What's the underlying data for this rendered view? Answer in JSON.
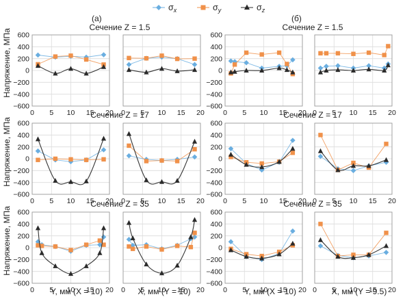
{
  "legend": {
    "sx": {
      "symbol": "σ",
      "sub": "x",
      "color": "#6aaee0",
      "marker": "diamond"
    },
    "sy": {
      "symbol": "σ",
      "sub": "y",
      "color": "#f0914a",
      "marker": "square"
    },
    "sz": {
      "symbol": "σ",
      "sub": "z",
      "color": "#2b2b2b",
      "marker": "triangle"
    }
  },
  "panel_labels": {
    "a": "(а)",
    "b": "(б)"
  },
  "ylabel": "Напряжение, МПа",
  "row_titles": [
    "Сечение Z = 1.5",
    "Сечение Z = 17",
    "Сечение Z = 35"
  ],
  "x_axis_labels": [
    "Y, мм (X = 10)",
    "X, мм (Y = 10)",
    "Y, мм (X = 10)",
    "X, мм (Y = 9.5)"
  ],
  "chart_data": [
    {
      "type": "line",
      "row": 0,
      "col": 0,
      "xlim": [
        0,
        20
      ],
      "ylim": [
        -600,
        600
      ],
      "xticks": [
        0,
        5,
        10,
        15,
        20
      ],
      "yticks": [
        -600,
        -400,
        -200,
        0,
        200,
        400,
        600
      ],
      "series": [
        {
          "key": "sx",
          "x": [
            1.5,
            6,
            10,
            14,
            18.5
          ],
          "y": [
            260,
            225,
            240,
            225,
            265
          ]
        },
        {
          "key": "sy",
          "x": [
            1.5,
            6,
            10,
            14,
            18.5
          ],
          "y": [
            105,
            235,
            250,
            185,
            100
          ]
        },
        {
          "key": "sz",
          "x": [
            1.5,
            6,
            10,
            14,
            18.5
          ],
          "y": [
            80,
            -50,
            30,
            -50,
            60
          ]
        }
      ]
    },
    {
      "type": "line",
      "row": 0,
      "col": 1,
      "xlim": [
        0,
        20
      ],
      "ylim": [
        -600,
        600
      ],
      "xticks": [
        0,
        5,
        10,
        15,
        20
      ],
      "yticks": [
        -600,
        -400,
        -200,
        0,
        200,
        400,
        600
      ],
      "series": [
        {
          "key": "sx",
          "x": [
            1.5,
            6,
            10,
            14,
            18.5
          ],
          "y": [
            100,
            205,
            225,
            200,
            100
          ]
        },
        {
          "key": "sy",
          "x": [
            1.5,
            6,
            10,
            14,
            18.5
          ],
          "y": [
            210,
            205,
            250,
            195,
            200
          ]
        },
        {
          "key": "sz",
          "x": [
            1.5,
            6,
            10,
            14,
            18.5
          ],
          "y": [
            10,
            -30,
            30,
            -10,
            10
          ]
        }
      ]
    },
    {
      "type": "line",
      "row": 0,
      "col": 2,
      "xlim": [
        0,
        20
      ],
      "ylim": [
        -600,
        600
      ],
      "xticks": [
        0,
        5,
        10,
        15,
        20
      ],
      "yticks": [
        -600,
        -400,
        -200,
        0,
        200,
        400,
        600
      ],
      "series": [
        {
          "key": "sx",
          "x": [
            1.5,
            2.5,
            5.5,
            9.5,
            14,
            16,
            17.5
          ],
          "y": [
            160,
            150,
            130,
            40,
            70,
            80,
            180
          ]
        },
        {
          "key": "sy",
          "x": [
            1.5,
            2.5,
            5.5,
            9.5,
            14,
            16,
            17.5
          ],
          "y": [
            -50,
            100,
            300,
            270,
            300,
            110,
            -60
          ]
        },
        {
          "key": "sz",
          "x": [
            1.5,
            2.5,
            5.5,
            9.5,
            14,
            16,
            17.5
          ],
          "y": [
            -30,
            -20,
            0,
            0,
            40,
            10,
            -30
          ]
        }
      ]
    },
    {
      "type": "line",
      "row": 0,
      "col": 3,
      "xlim": [
        0,
        20
      ],
      "ylim": [
        -600,
        600
      ],
      "xticks": [
        0,
        5,
        10,
        15,
        20
      ],
      "yticks": [
        -600,
        -400,
        -200,
        0,
        200,
        400,
        600
      ],
      "series": [
        {
          "key": "sx",
          "x": [
            1.5,
            3,
            6,
            10,
            14,
            18,
            19
          ],
          "y": [
            40,
            70,
            80,
            40,
            80,
            40,
            110
          ]
        },
        {
          "key": "sy",
          "x": [
            1.5,
            3,
            6,
            10,
            14,
            18,
            19
          ],
          "y": [
            290,
            290,
            290,
            280,
            300,
            260,
            410
          ]
        },
        {
          "key": "sz",
          "x": [
            1.5,
            3,
            6,
            10,
            14,
            18,
            19
          ],
          "y": [
            -30,
            0,
            10,
            0,
            20,
            0,
            90
          ]
        }
      ]
    },
    {
      "type": "line",
      "row": 1,
      "col": 0,
      "xlim": [
        0,
        20
      ],
      "ylim": [
        -600,
        600
      ],
      "xticks": [
        0,
        5,
        10,
        15,
        20
      ],
      "yticks": [
        -600,
        -400,
        -200,
        0,
        200,
        400,
        600
      ],
      "series": [
        {
          "key": "sx",
          "x": [
            1.5,
            6,
            10,
            14,
            18.5
          ],
          "y": [
            130,
            -20,
            -50,
            -20,
            150
          ]
        },
        {
          "key": "sy",
          "x": [
            1.5,
            6,
            10,
            14,
            18.5
          ],
          "y": [
            -20,
            0,
            -10,
            -20,
            -10
          ]
        },
        {
          "key": "sz",
          "x": [
            1.5,
            6,
            10,
            14,
            18.5
          ],
          "y": [
            330,
            -370,
            -390,
            -380,
            340
          ]
        }
      ]
    },
    {
      "type": "line",
      "row": 1,
      "col": 1,
      "xlim": [
        0,
        20
      ],
      "ylim": [
        -600,
        600
      ],
      "xticks": [
        0,
        5,
        10,
        15,
        20
      ],
      "yticks": [
        -600,
        -400,
        -200,
        0,
        200,
        400,
        600
      ],
      "series": [
        {
          "key": "sx",
          "x": [
            1.5,
            6,
            10,
            14,
            18.5
          ],
          "y": [
            50,
            -10,
            -30,
            -10,
            30
          ]
        },
        {
          "key": "sy",
          "x": [
            1.5,
            6,
            10,
            14,
            18.5
          ],
          "y": [
            220,
            -40,
            -30,
            -40,
            160
          ]
        },
        {
          "key": "sz",
          "x": [
            1.5,
            6,
            10,
            14,
            18.5
          ],
          "y": [
            420,
            -360,
            -390,
            -370,
            290
          ]
        }
      ]
    },
    {
      "type": "line",
      "row": 1,
      "col": 2,
      "xlim": [
        0,
        20
      ],
      "ylim": [
        -600,
        600
      ],
      "xticks": [
        0,
        5,
        10,
        15,
        20
      ],
      "yticks": [
        -600,
        -400,
        -200,
        0,
        200,
        400,
        600
      ],
      "series": [
        {
          "key": "sx",
          "x": [
            1.5,
            5.5,
            9.5,
            14,
            17.5
          ],
          "y": [
            170,
            -80,
            -190,
            -60,
            310
          ]
        },
        {
          "key": "sy",
          "x": [
            1.5,
            5.5,
            9.5,
            14,
            17.5
          ],
          "y": [
            30,
            -60,
            -80,
            -50,
            100
          ]
        },
        {
          "key": "sz",
          "x": [
            1.5,
            5.5,
            9.5,
            14,
            17.5
          ],
          "y": [
            70,
            -100,
            -140,
            -50,
            170
          ]
        }
      ]
    },
    {
      "type": "line",
      "row": 1,
      "col": 3,
      "xlim": [
        0,
        20
      ],
      "ylim": [
        -600,
        600
      ],
      "xticks": [
        0,
        5,
        10,
        15,
        20
      ],
      "yticks": [
        -600,
        -400,
        -200,
        0,
        200,
        400,
        600
      ],
      "series": [
        {
          "key": "sx",
          "x": [
            1.5,
            6,
            10,
            14,
            18.5
          ],
          "y": [
            40,
            -170,
            -200,
            -120,
            -60
          ]
        },
        {
          "key": "sy",
          "x": [
            1.5,
            6,
            10,
            14,
            18.5
          ],
          "y": [
            400,
            -190,
            -70,
            -150,
            250
          ]
        },
        {
          "key": "sz",
          "x": [
            1.5,
            6,
            10,
            14,
            18.5
          ],
          "y": [
            130,
            -190,
            -120,
            -120,
            -20
          ]
        }
      ]
    },
    {
      "type": "line",
      "row": 2,
      "col": 0,
      "xlim": [
        0,
        20
      ],
      "ylim": [
        -600,
        600
      ],
      "xticks": [
        0,
        5,
        10,
        15,
        20
      ],
      "yticks": [
        -600,
        -400,
        -200,
        0,
        200,
        400,
        600
      ],
      "series": [
        {
          "key": "sx",
          "x": [
            1.5,
            2.5,
            6,
            10,
            14,
            17.5,
            18.5
          ],
          "y": [
            100,
            50,
            20,
            -60,
            40,
            50,
            180
          ]
        },
        {
          "key": "sy",
          "x": [
            1.5,
            2.5,
            6,
            10,
            14,
            17.5,
            18.5
          ],
          "y": [
            40,
            30,
            20,
            -40,
            50,
            120,
            50
          ]
        },
        {
          "key": "sz",
          "x": [
            1.5,
            2.5,
            6,
            10,
            14,
            17.5,
            18.5
          ],
          "y": [
            330,
            -90,
            -310,
            -440,
            -310,
            -90,
            330
          ]
        }
      ]
    },
    {
      "type": "line",
      "row": 2,
      "col": 1,
      "xlim": [
        0,
        20
      ],
      "ylim": [
        -600,
        600
      ],
      "xticks": [
        0,
        5,
        10,
        15,
        20
      ],
      "yticks": [
        -600,
        -400,
        -200,
        0,
        200,
        400,
        600
      ],
      "series": [
        {
          "key": "sx",
          "x": [
            1.5,
            2.5,
            6,
            10,
            14,
            17.5,
            18.5
          ],
          "y": [
            140,
            40,
            50,
            -20,
            40,
            150,
            180
          ]
        },
        {
          "key": "sy",
          "x": [
            1.5,
            2.5,
            6,
            10,
            14,
            17.5,
            18.5
          ],
          "y": [
            20,
            -20,
            20,
            -30,
            30,
            10,
            250
          ]
        },
        {
          "key": "sz",
          "x": [
            1.5,
            2.5,
            6,
            10,
            14,
            17.5,
            18.5
          ],
          "y": [
            420,
            160,
            -280,
            -430,
            -300,
            180,
            470
          ]
        }
      ]
    },
    {
      "type": "line",
      "row": 2,
      "col": 2,
      "xlim": [
        0,
        20
      ],
      "ylim": [
        -600,
        600
      ],
      "xticks": [
        0,
        5,
        10,
        15,
        20
      ],
      "yticks": [
        -600,
        -400,
        -200,
        0,
        200,
        400,
        600
      ],
      "series": [
        {
          "key": "sx",
          "x": [
            1.5,
            5.5,
            9.5,
            14,
            17.5
          ],
          "y": [
            100,
            -150,
            -200,
            -100,
            280
          ]
        },
        {
          "key": "sy",
          "x": [
            1.5,
            5.5,
            9.5,
            14,
            17.5
          ],
          "y": [
            -20,
            -110,
            -140,
            -70,
            40
          ]
        },
        {
          "key": "sz",
          "x": [
            1.5,
            5.5,
            9.5,
            14,
            17.5
          ],
          "y": [
            -40,
            -150,
            -180,
            -110,
            70
          ]
        }
      ]
    },
    {
      "type": "line",
      "row": 2,
      "col": 3,
      "xlim": [
        0,
        20
      ],
      "ylim": [
        -600,
        600
      ],
      "xticks": [
        0,
        5,
        10,
        15,
        20
      ],
      "yticks": [
        -600,
        -400,
        -200,
        0,
        200,
        400,
        600
      ],
      "series": [
        {
          "key": "sx",
          "x": [
            1.5,
            6,
            10,
            14,
            18.5
          ],
          "y": [
            30,
            -130,
            -170,
            -140,
            -80
          ]
        },
        {
          "key": "sy",
          "x": [
            1.5,
            6,
            10,
            14,
            18.5
          ],
          "y": [
            400,
            -140,
            -120,
            -120,
            250
          ]
        },
        {
          "key": "sz",
          "x": [
            1.5,
            6,
            10,
            14,
            18.5
          ],
          "y": [
            130,
            -150,
            -170,
            -120,
            30
          ]
        }
      ]
    }
  ]
}
